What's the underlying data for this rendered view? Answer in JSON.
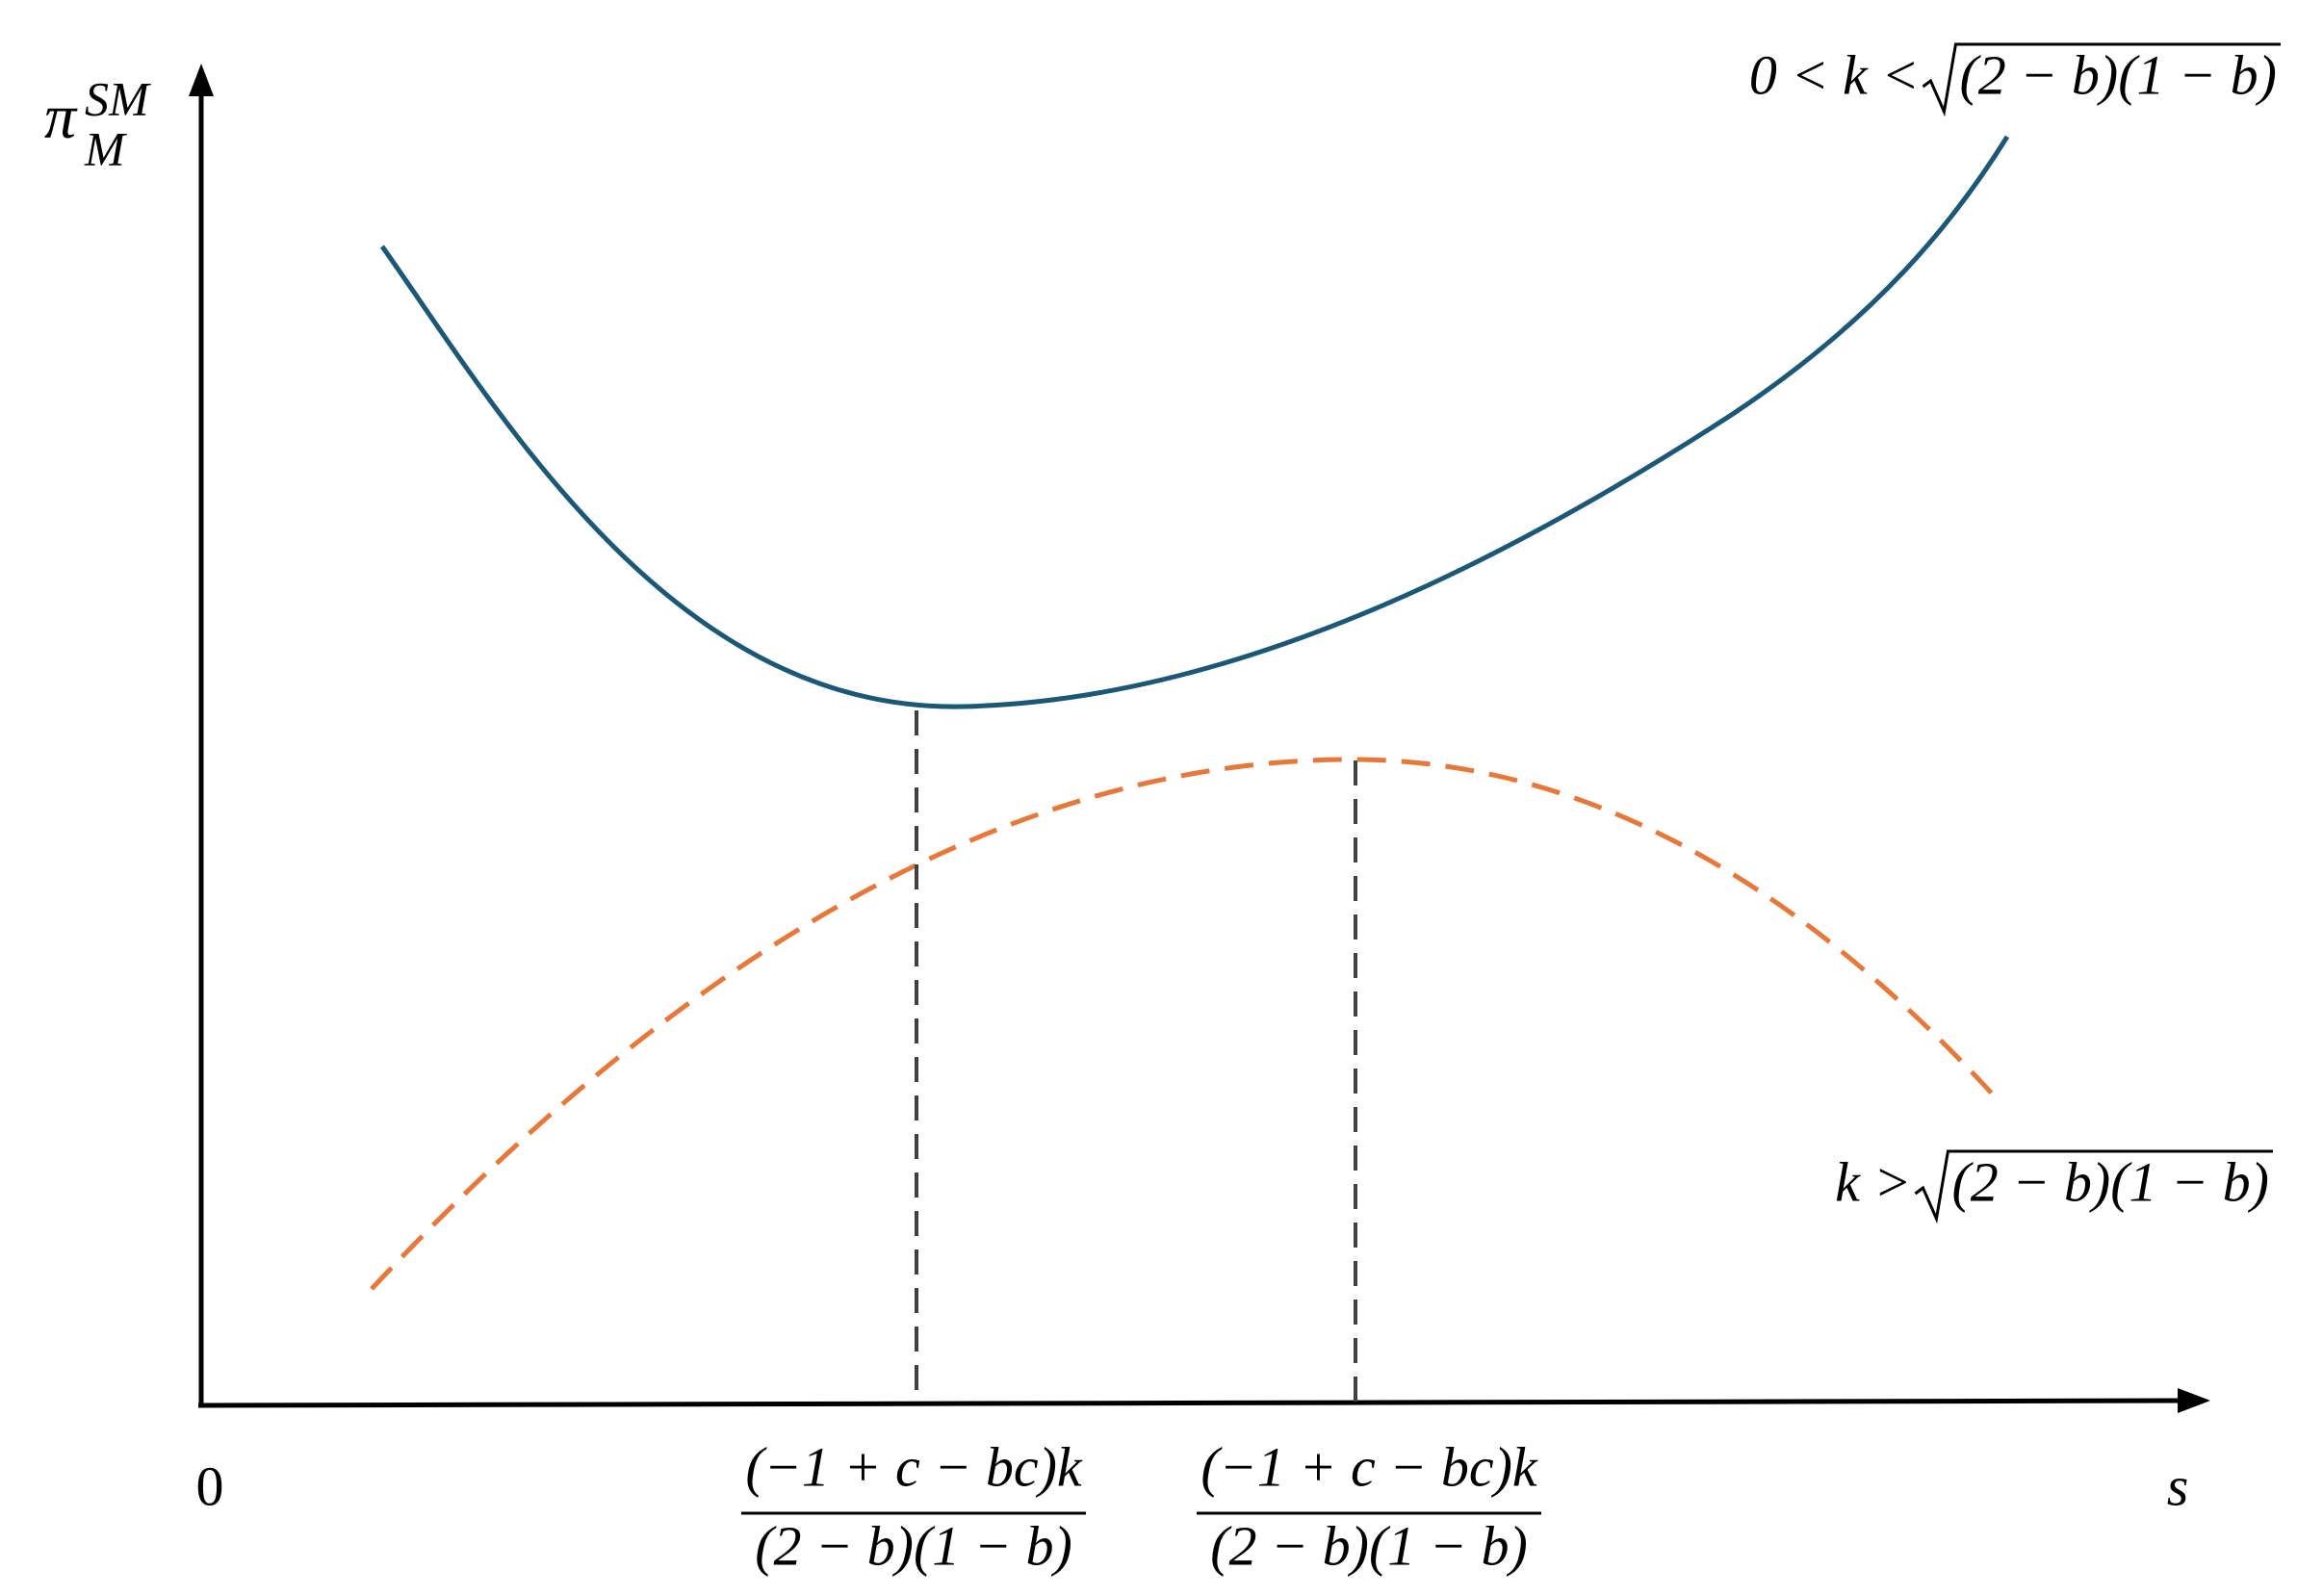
{
  "axes": {
    "y_label": {
      "base": "π",
      "superscript": "SM",
      "subscript": "M"
    },
    "origin": "0",
    "x_label": "s"
  },
  "curves": [
    {
      "prefix": "0 < k < ",
      "radicand": "(2 − b)(1 − b)"
    },
    {
      "prefix": "k > ",
      "radicand": "(2 − b)(1 − b)"
    }
  ],
  "markers": [
    {
      "numerator": "(−1 + c − bc)k",
      "denominator": "(2 − b)(1 − b)"
    },
    {
      "numerator": "(−1 + c − bc)k",
      "denominator": "(2 − b)(1 − b)"
    }
  ]
}
